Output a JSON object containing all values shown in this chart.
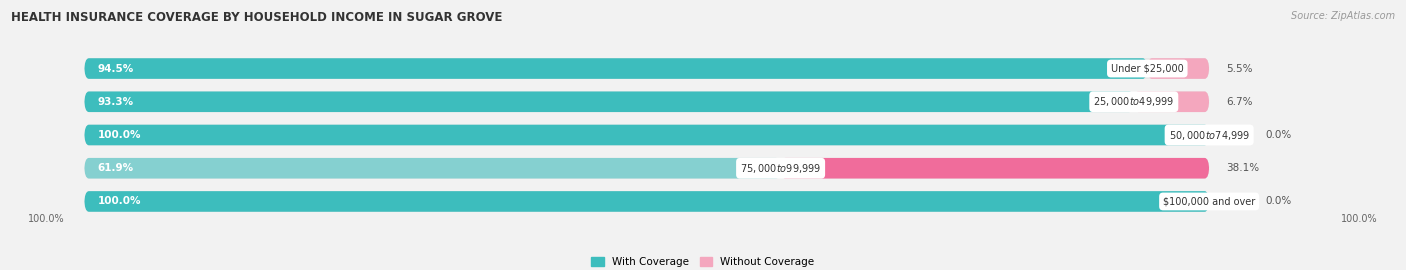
{
  "title": "HEALTH INSURANCE COVERAGE BY HOUSEHOLD INCOME IN SUGAR GROVE",
  "source": "Source: ZipAtlas.com",
  "categories": [
    "Under $25,000",
    "$25,000 to $49,999",
    "$50,000 to $74,999",
    "$75,000 to $99,999",
    "$100,000 and over"
  ],
  "with_coverage": [
    94.5,
    93.3,
    100.0,
    61.9,
    100.0
  ],
  "without_coverage": [
    5.5,
    6.7,
    0.0,
    38.1,
    0.0
  ],
  "color_with": "#3dbdbd",
  "color_without_light": "#f4a7be",
  "color_without_dark": "#f06c9b",
  "color_with_light": "#85d0d0",
  "bg_color": "#f2f2f2",
  "bar_bg_color": "#e4e4e4",
  "legend_with": "With Coverage",
  "legend_without": "Without Coverage",
  "figsize": [
    14.06,
    2.7
  ],
  "dpi": 100
}
